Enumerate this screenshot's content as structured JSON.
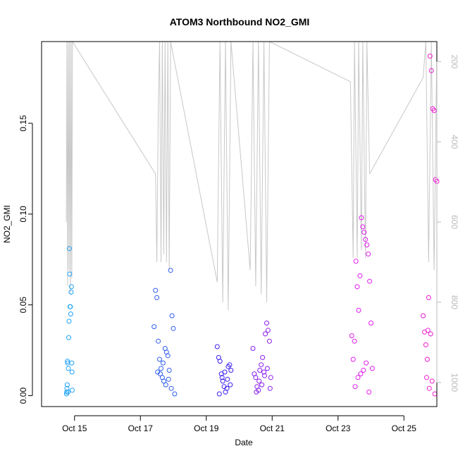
{
  "chart_data": {
    "type": "scatter",
    "title": "ATOM3 Northbound NO2_GMI",
    "xlabel": "Date",
    "ylabel": "NO2_GMI",
    "xlim": [
      "2017-10-14",
      "2017-10-26"
    ],
    "ylim": [
      -0.006,
      0.195
    ],
    "y2lim": [
      1060,
      150
    ],
    "xticks": [
      {
        "date": "2017-10-15",
        "label": "Oct 15"
      },
      {
        "date": "2017-10-17",
        "label": "Oct 17"
      },
      {
        "date": "2017-10-19",
        "label": "Oct 19"
      },
      {
        "date": "2017-10-21",
        "label": "Oct 21"
      },
      {
        "date": "2017-10-23",
        "label": "Oct 23"
      },
      {
        "date": "2017-10-25",
        "label": "Oct 25"
      }
    ],
    "yticks": [
      0.0,
      0.05,
      0.1,
      0.15
    ],
    "ytick_labels": [
      "0.00",
      "0.05",
      "0.10",
      "0.15"
    ],
    "y2ticks": [
      200,
      400,
      600,
      800,
      1000
    ],
    "y2tick_labels": [
      "200",
      "400",
      "600",
      "800",
      "1000"
    ],
    "grid": false,
    "legend": "none",
    "colors": {
      "altitude_line": "#c8c8c8",
      "flight_colors": [
        "#1fa3f7",
        "#2f5ef0",
        "#3a1ff0",
        "#8a1cf0",
        "#e21cf0",
        "#f01ccf"
      ]
    },
    "flights": [
      {
        "x": [
          "2017-10-14 18:10",
          "2017-10-14 18:20",
          "2017-10-14 18:30",
          "2017-10-14 18:40",
          "2017-10-14 18:50",
          "2017-10-14 19:00",
          "2017-10-14 19:15",
          "2017-10-14 19:30",
          "2017-10-14 19:45",
          "2017-10-14 20:00",
          "2017-10-14 20:15",
          "2017-10-14 20:30",
          "2017-10-14 20:45",
          "2017-10-14 21:00",
          "2017-10-14 21:15",
          "2017-10-14 21:30",
          "2017-10-14 21:45",
          "2017-10-14 22:00",
          "2017-10-14 22:10",
          "2017-10-14 22:20"
        ],
        "y": [
          0.001,
          0.002,
          0.004,
          0.006,
          0.019,
          0.018,
          0.002,
          0.015,
          0.032,
          0.041,
          0.081,
          0.067,
          0.049,
          0.049,
          0.045,
          0.057,
          0.06,
          0.018,
          0.013,
          0.003
        ],
        "alt_x": [
          "2017-10-14 18:00",
          "2017-10-14 18:30",
          "2017-10-14 19:00",
          "2017-10-14 19:30",
          "2017-10-14 20:00",
          "2017-10-14 20:30",
          "2017-10-14 21:00",
          "2017-10-14 21:30",
          "2017-10-14 22:00",
          "2017-10-14 22:30"
        ],
        "alt_y": [
          600,
          150,
          760,
          150,
          720,
          150,
          780,
          150,
          740,
          150
        ]
      },
      {
        "x": [
          "2017-10-17 10:00",
          "2017-10-17 11:00",
          "2017-10-17 12:00",
          "2017-10-17 13:00",
          "2017-10-17 14:00",
          "2017-10-17 15:00",
          "2017-10-17 16:00",
          "2017-10-17 17:00",
          "2017-10-17 18:00",
          "2017-10-17 19:00",
          "2017-10-17 20:00",
          "2017-10-17 21:00",
          "2017-10-17 22:00",
          "2017-10-17 23:00",
          "2017-10-18 00:00",
          "2017-10-18 01:00",
          "2017-10-17 14:30",
          "2017-10-17 16:30",
          "2017-10-17 18:30",
          "2017-10-17 20:30",
          "2017-10-17 22:30",
          "2017-10-17 12:30"
        ],
        "y": [
          0.038,
          0.058,
          0.054,
          0.03,
          0.02,
          0.015,
          0.01,
          0.008,
          0.026,
          0.024,
          0.022,
          0.014,
          0.069,
          0.044,
          0.037,
          0.001,
          0.012,
          0.018,
          0.006,
          0.009,
          0.004,
          0.013
        ],
        "alt_x": [
          "2017-10-17 11:00",
          "2017-10-17 12:00",
          "2017-10-17 13:00",
          "2017-10-17 14:00",
          "2017-10-17 15:00",
          "2017-10-17 16:00",
          "2017-10-17 17:00",
          "2017-10-17 18:00",
          "2017-10-17 19:00",
          "2017-10-17 20:00",
          "2017-10-17 21:00",
          "2017-10-17 22:00"
        ],
        "alt_y": [
          480,
          700,
          320,
          150,
          700,
          150,
          680,
          150,
          700,
          150,
          720,
          150
        ]
      },
      {
        "x": [
          "2017-10-19 08:00",
          "2017-10-19 09:00",
          "2017-10-19 10:00",
          "2017-10-19 11:00",
          "2017-10-19 12:00",
          "2017-10-19 13:00",
          "2017-10-19 14:00",
          "2017-10-19 15:00",
          "2017-10-19 16:00",
          "2017-10-19 17:00",
          "2017-10-19 18:00",
          "2017-10-19 09:30",
          "2017-10-19 11:30",
          "2017-10-19 13:30",
          "2017-10-19 15:30",
          "2017-10-19 17:30"
        ],
        "y": [
          0.027,
          0.021,
          0.019,
          0.012,
          0.008,
          0.005,
          0.002,
          0.004,
          0.016,
          0.017,
          0.014,
          0.001,
          0.01,
          0.013,
          0.009,
          0.006
        ],
        "alt_x": [
          "2017-10-19 08:00",
          "2017-10-19 10:00",
          "2017-10-19 12:00",
          "2017-10-19 14:00",
          "2017-10-19 16:00",
          "2017-10-19 18:00"
        ],
        "alt_y": [
          750,
          150,
          800,
          150,
          820,
          150
        ]
      },
      {
        "x": [
          "2017-10-20 10:00",
          "2017-10-20 11:00",
          "2017-10-20 12:00",
          "2017-10-20 13:00",
          "2017-10-20 14:00",
          "2017-10-20 15:00",
          "2017-10-20 16:00",
          "2017-10-20 17:00",
          "2017-10-20 18:00",
          "2017-10-20 19:00",
          "2017-10-20 20:00",
          "2017-10-20 21:00",
          "2017-10-20 22:00",
          "2017-10-20 23:00",
          "2017-10-20 12:30",
          "2017-10-20 14:30",
          "2017-10-20 16:30",
          "2017-10-20 18:30",
          "2017-10-20 20:30",
          "2017-10-20 22:30"
        ],
        "y": [
          0.026,
          0.012,
          0.01,
          0.005,
          0.003,
          0.014,
          0.017,
          0.021,
          0.013,
          0.034,
          0.04,
          0.036,
          0.03,
          0.01,
          0.002,
          0.008,
          0.006,
          0.011,
          0.015,
          0.004
        ],
        "alt_x": [
          "2017-10-20 08:00",
          "2017-10-20 10:00",
          "2017-10-20 12:00",
          "2017-10-20 14:00",
          "2017-10-20 16:00",
          "2017-10-20 18:00",
          "2017-10-20 20:00",
          "2017-10-20 22:00"
        ],
        "alt_y": [
          720,
          150,
          760,
          150,
          780,
          150,
          800,
          150
        ]
      },
      {
        "x": [
          "2017-10-23 10:00",
          "2017-10-23 11:00",
          "2017-10-23 12:00",
          "2017-10-23 13:00",
          "2017-10-23 14:00",
          "2017-10-23 15:00",
          "2017-10-23 16:00",
          "2017-10-23 17:00",
          "2017-10-23 18:00",
          "2017-10-23 19:00",
          "2017-10-23 20:00",
          "2017-10-23 21:00",
          "2017-10-23 22:00",
          "2017-10-23 23:00",
          "2017-10-24 00:00",
          "2017-10-24 01:00",
          "2017-10-23 12:30",
          "2017-10-23 14:30",
          "2017-10-23 16:30",
          "2017-10-23 18:30",
          "2017-10-23 20:30",
          "2017-10-23 22:30"
        ],
        "y": [
          0.033,
          0.02,
          0.03,
          0.074,
          0.06,
          0.047,
          0.066,
          0.098,
          0.093,
          0.09,
          0.086,
          0.083,
          0.078,
          0.063,
          0.04,
          0.015,
          0.005,
          0.01,
          0.012,
          0.014,
          0.018,
          0.002
        ],
        "alt_x": [
          "2017-10-23 09:00",
          "2017-10-23 11:00",
          "2017-10-23 12:00",
          "2017-10-23 14:00",
          "2017-10-23 15:00",
          "2017-10-23 17:00",
          "2017-10-23 18:00",
          "2017-10-23 20:00",
          "2017-10-23 21:00",
          "2017-10-23 23:00"
        ],
        "alt_y": [
          250,
          690,
          150,
          690,
          150,
          670,
          150,
          690,
          150,
          480
        ]
      },
      {
        "x": [
          "2017-10-25 14:00",
          "2017-10-25 15:00",
          "2017-10-25 16:00",
          "2017-10-25 17:00",
          "2017-10-25 18:00",
          "2017-10-25 19:00",
          "2017-10-25 20:00",
          "2017-10-25 21:00",
          "2017-10-25 22:00",
          "2017-10-25 23:00",
          "2017-10-26 00:00",
          "2017-10-25 16:30",
          "2017-10-25 18:30",
          "2017-10-25 20:30",
          "2017-10-25 22:30",
          "2017-10-25 17:30",
          "2017-10-25 19:30"
        ],
        "y": [
          0.044,
          0.035,
          0.028,
          0.02,
          0.054,
          0.187,
          0.179,
          0.158,
          0.157,
          0.119,
          0.118,
          0.01,
          0.004,
          0.008,
          0.001,
          0.036,
          0.034
        ],
        "alt_x": [
          "2017-10-25 14:00",
          "2017-10-25 16:00",
          "2017-10-25 18:00",
          "2017-10-25 20:00",
          "2017-10-25 22:00",
          "2017-10-26 00:00"
        ],
        "alt_y": [
          240,
          150,
          700,
          150,
          720,
          150
        ]
      }
    ]
  }
}
